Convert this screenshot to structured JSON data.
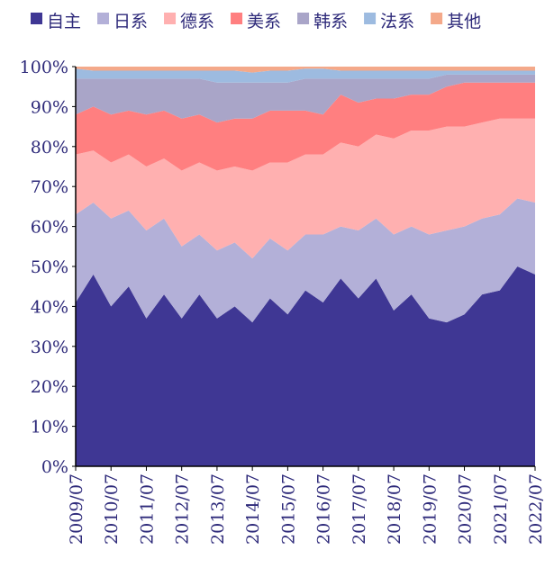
{
  "chart_data": {
    "type": "stacked_area",
    "x": [
      "2009/07",
      "2010/01",
      "2010/07",
      "2011/01",
      "2011/07",
      "2012/01",
      "2012/07",
      "2013/01",
      "2013/07",
      "2014/01",
      "2014/07",
      "2015/01",
      "2015/07",
      "2016/01",
      "2016/07",
      "2017/01",
      "2017/07",
      "2018/01",
      "2018/07",
      "2019/01",
      "2019/07",
      "2020/01",
      "2020/07",
      "2021/01",
      "2021/07",
      "2022/01",
      "2022/07"
    ],
    "series": [
      {
        "name": "自主",
        "color": "#3f3794",
        "values": [
          41,
          48,
          40,
          45,
          37,
          43,
          37,
          43,
          37,
          40,
          36,
          42,
          38,
          44,
          41,
          47,
          42,
          47,
          39,
          43,
          37,
          36,
          38,
          43,
          44,
          50,
          48
        ]
      },
      {
        "name": "日系",
        "color": "#b3b0d8",
        "values": [
          22,
          18,
          22,
          19,
          22,
          19,
          18,
          15,
          17,
          16,
          16,
          15,
          16,
          14,
          17,
          13,
          17,
          15,
          19,
          17,
          21,
          23,
          22,
          19,
          19,
          17,
          18
        ]
      },
      {
        "name": "德系",
        "color": "#ffb0b0",
        "values": [
          15,
          13,
          14,
          14,
          16,
          15,
          19,
          18,
          20,
          19,
          22,
          19,
          22,
          20,
          20,
          21,
          21,
          21,
          24,
          24,
          26,
          26,
          25,
          24,
          24,
          20,
          21
        ]
      },
      {
        "name": "美系",
        "color": "#ff7f80",
        "values": [
          10,
          11,
          12,
          11,
          13,
          12,
          13,
          12,
          12,
          12,
          13,
          13,
          13,
          11,
          10,
          12,
          11,
          9,
          10,
          9,
          9,
          10,
          11,
          10,
          9,
          9,
          9
        ]
      },
      {
        "name": "韩系",
        "color": "#a9a5c8",
        "values": [
          9,
          7,
          9,
          8,
          9,
          8,
          10,
          9,
          10,
          9,
          9,
          7,
          7,
          8,
          9,
          4,
          6,
          5,
          5,
          4,
          4,
          3,
          2,
          2,
          2,
          2,
          2
        ]
      },
      {
        "name": "法系",
        "color": "#9dbbe0",
        "values": [
          2.5,
          2,
          2,
          2,
          2,
          2,
          2,
          2,
          3,
          3,
          2.5,
          3,
          3,
          2.5,
          2.5,
          2,
          2,
          2,
          2,
          2,
          2,
          1,
          1,
          1,
          1,
          1,
          1
        ]
      },
      {
        "name": "其他",
        "color": "#f4a98a",
        "values": [
          0.5,
          1,
          1,
          1,
          1,
          1,
          1,
          1,
          1,
          1,
          1.5,
          1,
          1,
          0.5,
          0.5,
          1,
          1,
          1,
          1,
          1,
          1,
          1,
          1,
          1,
          1,
          1,
          1
        ]
      }
    ],
    "ylim": [
      0,
      100
    ],
    "yticks": [
      {
        "value": 0,
        "label": "0%"
      },
      {
        "value": 10,
        "label": "10%"
      },
      {
        "value": 20,
        "label": "20%"
      },
      {
        "value": 30,
        "label": "30%"
      },
      {
        "value": 40,
        "label": "40%"
      },
      {
        "value": 50,
        "label": "50%"
      },
      {
        "value": 60,
        "label": "60%"
      },
      {
        "value": 70,
        "label": "70%"
      },
      {
        "value": 80,
        "label": "80%"
      },
      {
        "value": 90,
        "label": "90%"
      },
      {
        "value": 100,
        "label": "100%"
      }
    ],
    "legend": "top"
  }
}
